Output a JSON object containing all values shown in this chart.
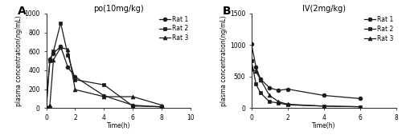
{
  "panel_A": {
    "title": "po(10mg/kg)",
    "xlabel": "Time(h)",
    "ylabel": "plasma concentration(ng/mL)",
    "xlim": [
      0,
      10
    ],
    "ylim": [
      0,
      1000
    ],
    "yticks": [
      0,
      200,
      400,
      600,
      800,
      1000
    ],
    "xticks": [
      0,
      2,
      4,
      6,
      8,
      10
    ],
    "rat1": {
      "x": [
        0,
        0.25,
        0.5,
        1,
        1.5,
        2,
        4,
        6,
        8
      ],
      "y": [
        0,
        520,
        580,
        650,
        430,
        330,
        130,
        30,
        10
      ],
      "marker": "o",
      "label": "Rat 1"
    },
    "rat2": {
      "x": [
        0,
        0.25,
        0.5,
        1,
        1.5,
        2,
        4,
        6,
        8
      ],
      "y": [
        0,
        500,
        600,
        900,
        560,
        300,
        245,
        20,
        15
      ],
      "marker": "s",
      "label": "Rat 2"
    },
    "rat3": {
      "x": [
        0,
        0.25,
        0.5,
        1,
        1.5,
        2,
        4,
        6,
        8
      ],
      "y": [
        0,
        30,
        510,
        640,
        620,
        195,
        120,
        120,
        30
      ],
      "marker": "^",
      "label": "Rat 3"
    }
  },
  "panel_B": {
    "title": "IV(2mg/kg)",
    "xlabel": "Time(h)",
    "ylabel": "plasma concentration(ng/mL)",
    "xlim": [
      0,
      8
    ],
    "ylim": [
      0,
      1500
    ],
    "yticks": [
      0,
      500,
      1000,
      1500
    ],
    "xticks": [
      0,
      2,
      4,
      6,
      8
    ],
    "rat1": {
      "x": [
        0,
        0.25,
        0.5,
        1,
        1.5,
        2,
        4,
        6
      ],
      "y": [
        1020,
        650,
        460,
        320,
        280,
        300,
        200,
        150
      ],
      "marker": "o",
      "label": "Rat 1"
    },
    "rat2": {
      "x": [
        0,
        0.25,
        0.5,
        1,
        1.5,
        2,
        4,
        6
      ],
      "y": [
        750,
        380,
        240,
        100,
        80,
        50,
        30,
        20
      ],
      "marker": "s",
      "label": "Rat 2"
    },
    "rat3": {
      "x": [
        0,
        0.25,
        0.5,
        1,
        1.5,
        2,
        4,
        6
      ],
      "y": [
        620,
        580,
        450,
        200,
        100,
        60,
        30,
        20
      ],
      "marker": "^",
      "label": "Rat 3"
    }
  },
  "line_color": "#1a1a1a",
  "markersize": 3.5,
  "linewidth": 0.9,
  "label_fontsize": 5.5,
  "tick_fontsize": 5.5,
  "title_fontsize": 7,
  "legend_fontsize": 5.5,
  "panel_label_fontsize": 10
}
